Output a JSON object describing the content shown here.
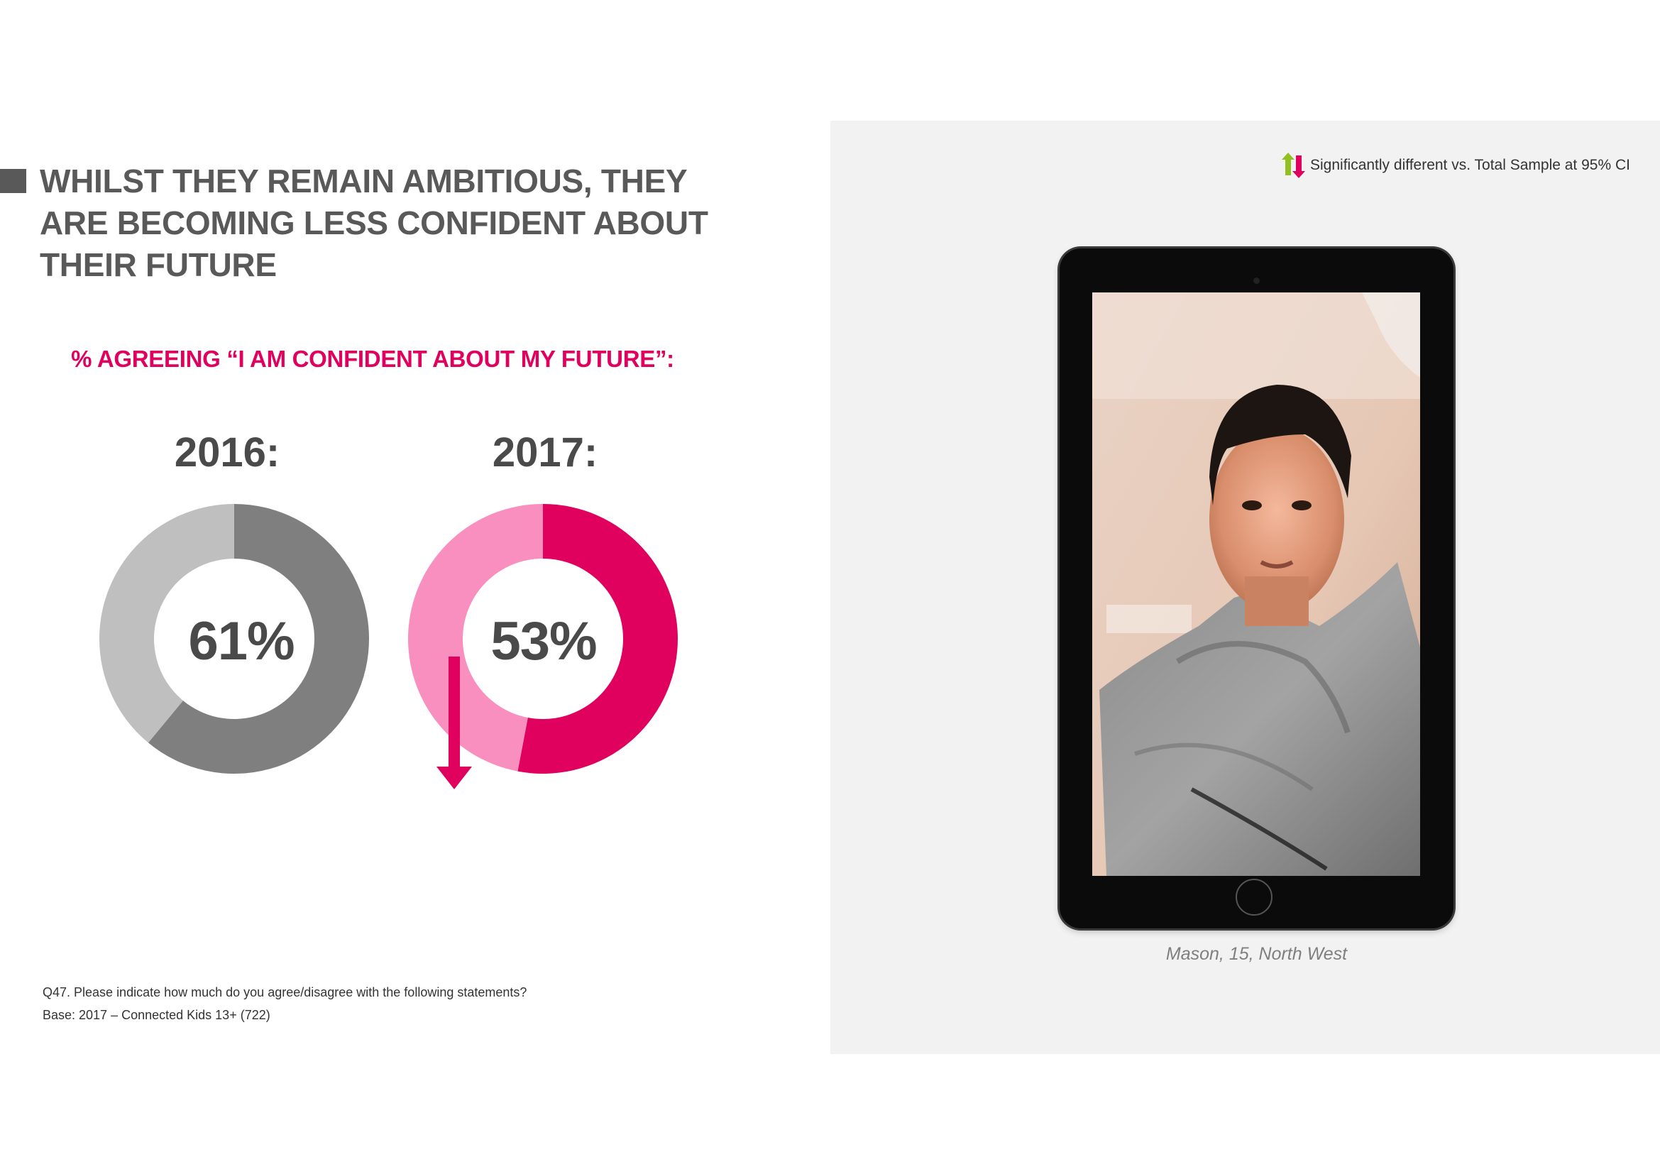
{
  "title": "WHILST THEY REMAIN AMBITIOUS, THEY ARE BECOMING LESS CONFIDENT ABOUT THEIR FUTURE",
  "subtitle": "% AGREEING “I AM CONFIDENT ABOUT MY FUTURE”:",
  "colors": {
    "grey_main": "#7f7f7f",
    "grey_light": "#bfbfbf",
    "pink_main": "#e0005e",
    "pink_light": "#f98fbf",
    "arrow_up": "#92c020",
    "arrow_down": "#e0005e"
  },
  "chart_data": [
    {
      "type": "pie",
      "title": "2016:",
      "values": [
        61,
        39
      ],
      "label": "61%",
      "colors": [
        "#7f7f7f",
        "#bfbfbf"
      ]
    },
    {
      "type": "pie",
      "title": "2017:",
      "values": [
        53,
        47
      ],
      "label": "53%",
      "colors": [
        "#e0005e",
        "#f98fbf"
      ],
      "annotation": "significant-decrease-arrow"
    }
  ],
  "legend": {
    "icon": "up-down-arrows-icon",
    "text": "Significantly different vs. Total Sample at 95% CI"
  },
  "footnotes": {
    "question": "Q47. Please indicate how much do you agree/disagree with the following statements?",
    "base": "Base: 2017 – Connected Kids 13+ (722)"
  },
  "photo": {
    "caption": "Mason, 15, North West"
  }
}
